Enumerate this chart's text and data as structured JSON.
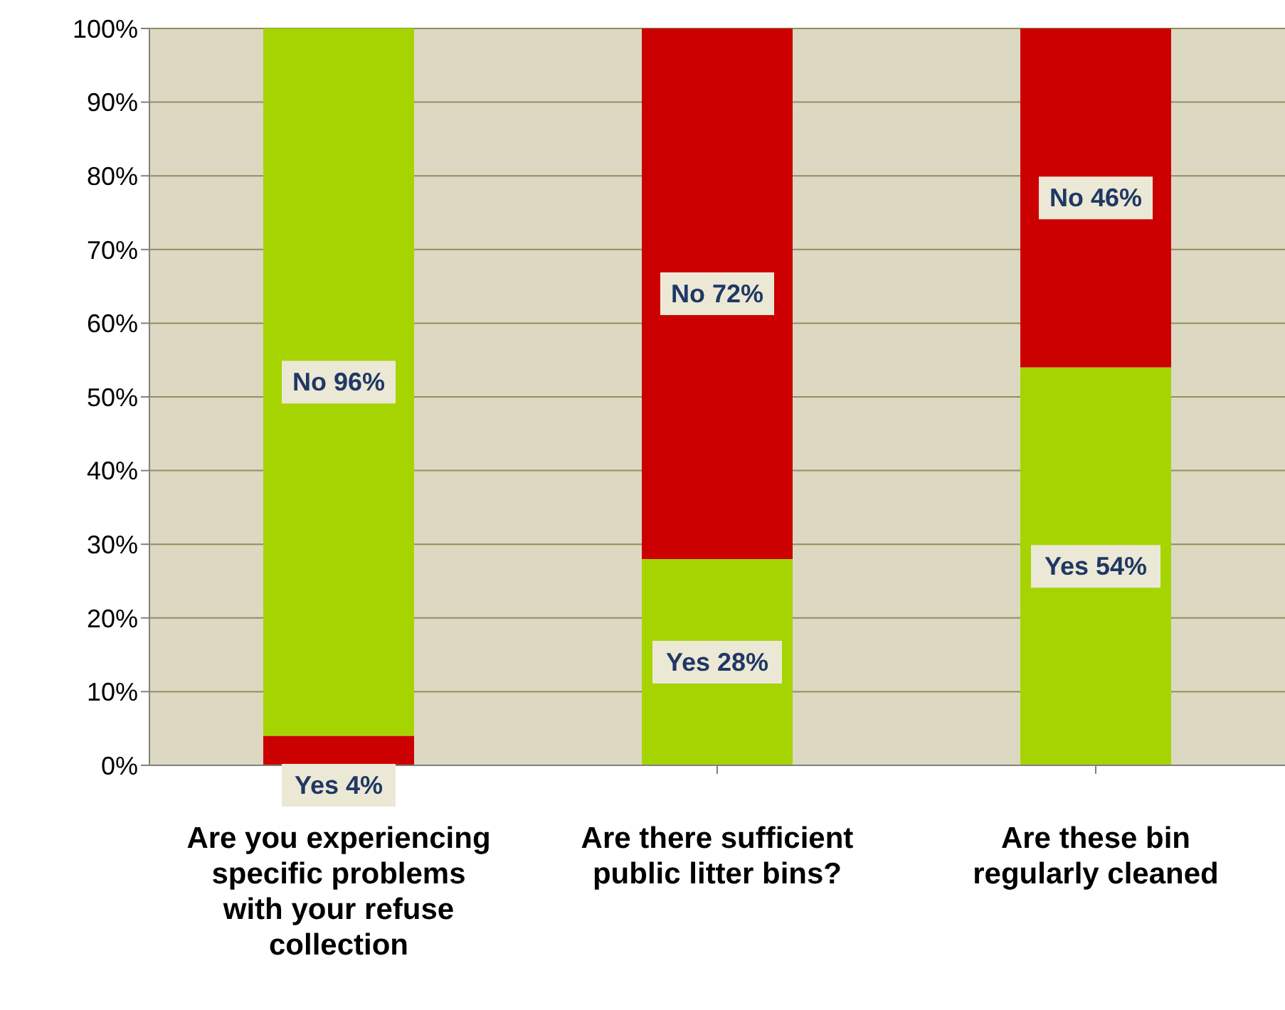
{
  "chart_data": {
    "type": "bar",
    "stacked": true,
    "categories": [
      "Are you experiencing specific problems with your refuse collection",
      "Are there sufficient public litter bins?",
      "Are these bin regularly cleaned"
    ],
    "series": [
      {
        "colors": [
          "#cc0000",
          "#a6d400",
          "#a6d400"
        ],
        "values": [
          4,
          28,
          54
        ],
        "value_labels": [
          "Yes 4%",
          "Yes 28%",
          "Yes 54%"
        ]
      },
      {
        "colors": [
          "#a6d400",
          "#cc0000",
          "#cc0000"
        ],
        "values": [
          96,
          72,
          46
        ],
        "value_labels": [
          "No 96%",
          "No 72%",
          "No 46%"
        ]
      }
    ],
    "ylim": [
      0,
      100
    ],
    "yticks": [
      {
        "value": 0,
        "label": "0%"
      },
      {
        "value": 10,
        "label": "10%"
      },
      {
        "value": 20,
        "label": "20%"
      },
      {
        "value": 30,
        "label": "30%"
      },
      {
        "value": 40,
        "label": "40%"
      },
      {
        "value": 50,
        "label": "50%"
      },
      {
        "value": 60,
        "label": "60%"
      },
      {
        "value": 70,
        "label": "70%"
      },
      {
        "value": 80,
        "label": "80%"
      },
      {
        "value": 90,
        "label": "90%"
      },
      {
        "value": 100,
        "label": "100%"
      }
    ],
    "grid": "y",
    "legend": false
  }
}
